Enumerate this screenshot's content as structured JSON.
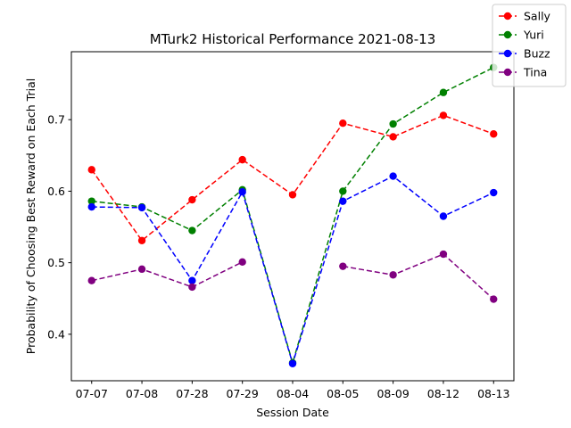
{
  "chart_data": {
    "type": "line",
    "title": "MTurk2 Historical Performance 2021-08-13",
    "xlabel": "Session Date",
    "ylabel": "Probability of Choosing Best Reward on Each Trial",
    "categories": [
      "07-07",
      "07-08",
      "07-28",
      "07-29",
      "08-04",
      "08-05",
      "08-09",
      "08-12",
      "08-13"
    ],
    "ylim": [
      0.335,
      0.795
    ],
    "yticks": [
      0.4,
      0.5,
      0.6,
      0.7
    ],
    "ytick_labels": [
      "0.4",
      "0.5",
      "0.6",
      "0.7"
    ],
    "grid": false,
    "legend_position": "top-right",
    "series": [
      {
        "name": "Sally",
        "color": "#ff0000",
        "values": [
          0.63,
          0.531,
          0.588,
          0.644,
          0.595,
          0.695,
          0.676,
          0.706,
          0.68
        ]
      },
      {
        "name": "Yuri",
        "color": "#008000",
        "values": [
          0.586,
          0.578,
          0.545,
          0.602,
          0.36,
          0.6,
          0.694,
          0.738,
          0.773
        ]
      },
      {
        "name": "Buzz",
        "color": "#0000ff",
        "values": [
          0.578,
          0.577,
          0.475,
          0.599,
          0.359,
          0.586,
          0.621,
          0.565,
          0.598
        ]
      },
      {
        "name": "Tina",
        "color": "#800080",
        "values": [
          0.475,
          0.491,
          0.466,
          0.501,
          null,
          0.495,
          0.483,
          0.512,
          0.449
        ]
      }
    ]
  }
}
